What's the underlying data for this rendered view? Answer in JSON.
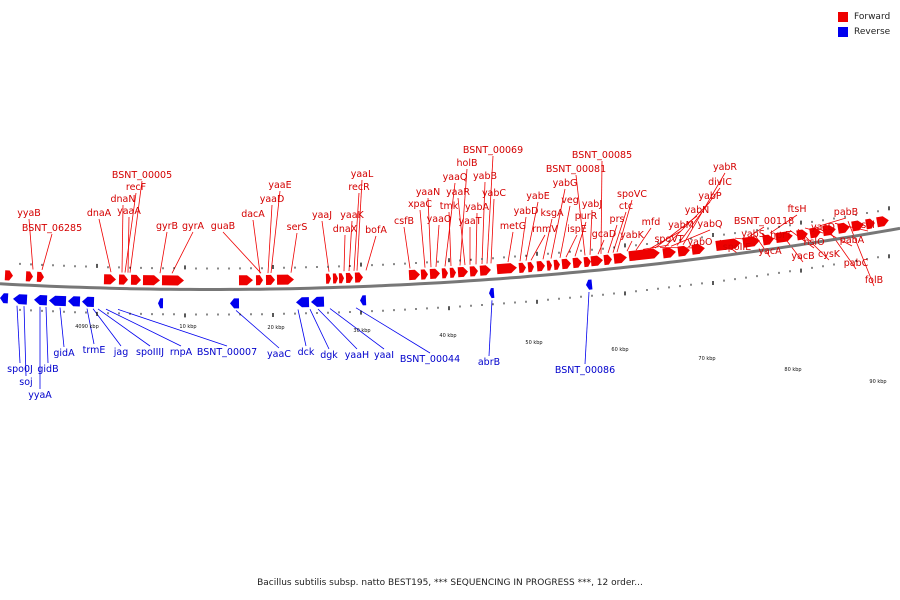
{
  "legend": {
    "forward_label": "Forward",
    "reverse_label": "Reverse",
    "forward_color": "#ee0000",
    "reverse_color": "#0000ee"
  },
  "backbone_color": "#777777",
  "caption": "Bacillus subtilis subsp. natto BEST195, *** SEQUENCING IN PROGRESS ***, 12 order...",
  "scale_labels": [
    "4090 kbp",
    "10 kbp",
    "20 kbp",
    "30 kbp",
    "40 kbp",
    "50 kbp",
    "60 kbp",
    "70 kbp",
    "80 kbp",
    "90 kbp"
  ],
  "forward_genes": [
    "yyaB",
    "BSNT_06285",
    "dnaA",
    "dnaN",
    "recF",
    "BSNT_00005",
    "yaaA",
    "gyrB",
    "gyrA",
    "guaB",
    "dacA",
    "yaaD",
    "yaaE",
    "serS",
    "yaaJ",
    "dnaX",
    "yaaK",
    "recR",
    "yaaL",
    "bofA",
    "csfB",
    "xpaC",
    "yaaN",
    "yaaO",
    "yaaQ",
    "tmk",
    "holB",
    "yaaR",
    "yaaT",
    "yabA",
    "yabB",
    "BSNT_00069",
    "yabC",
    "metG",
    "yabD",
    "yabE",
    "rnmV",
    "ksgA",
    "yabG",
    "veg",
    "ispE",
    "purR",
    "BSNT_00081",
    "yabJ",
    "gcaD",
    "BSNT_00085",
    "prs",
    "ctc",
    "spoVC",
    "yabK",
    "mfd",
    "spoVT",
    "yabM",
    "yabN",
    "yabO",
    "yabP",
    "yabQ",
    "divIC",
    "yabR",
    "spoIIE",
    "yabS",
    "BSNT_00118",
    "yacA",
    "hprT",
    "ftsH",
    "yacB",
    "hslO",
    "cysK",
    "yacD",
    "pabA",
    "pabB",
    "pabC",
    "sul",
    "folB"
  ],
  "reverse_genes": [
    "spo0J",
    "soj",
    "yyaA",
    "gidB",
    "gidA",
    "trmE",
    "jag",
    "spoIIIJ",
    "rnpA",
    "BSNT_00007",
    "yaaC",
    "dck",
    "dgk",
    "yaaH",
    "yaaI",
    "BSNT_00044",
    "abrB",
    "BSNT_00086"
  ]
}
